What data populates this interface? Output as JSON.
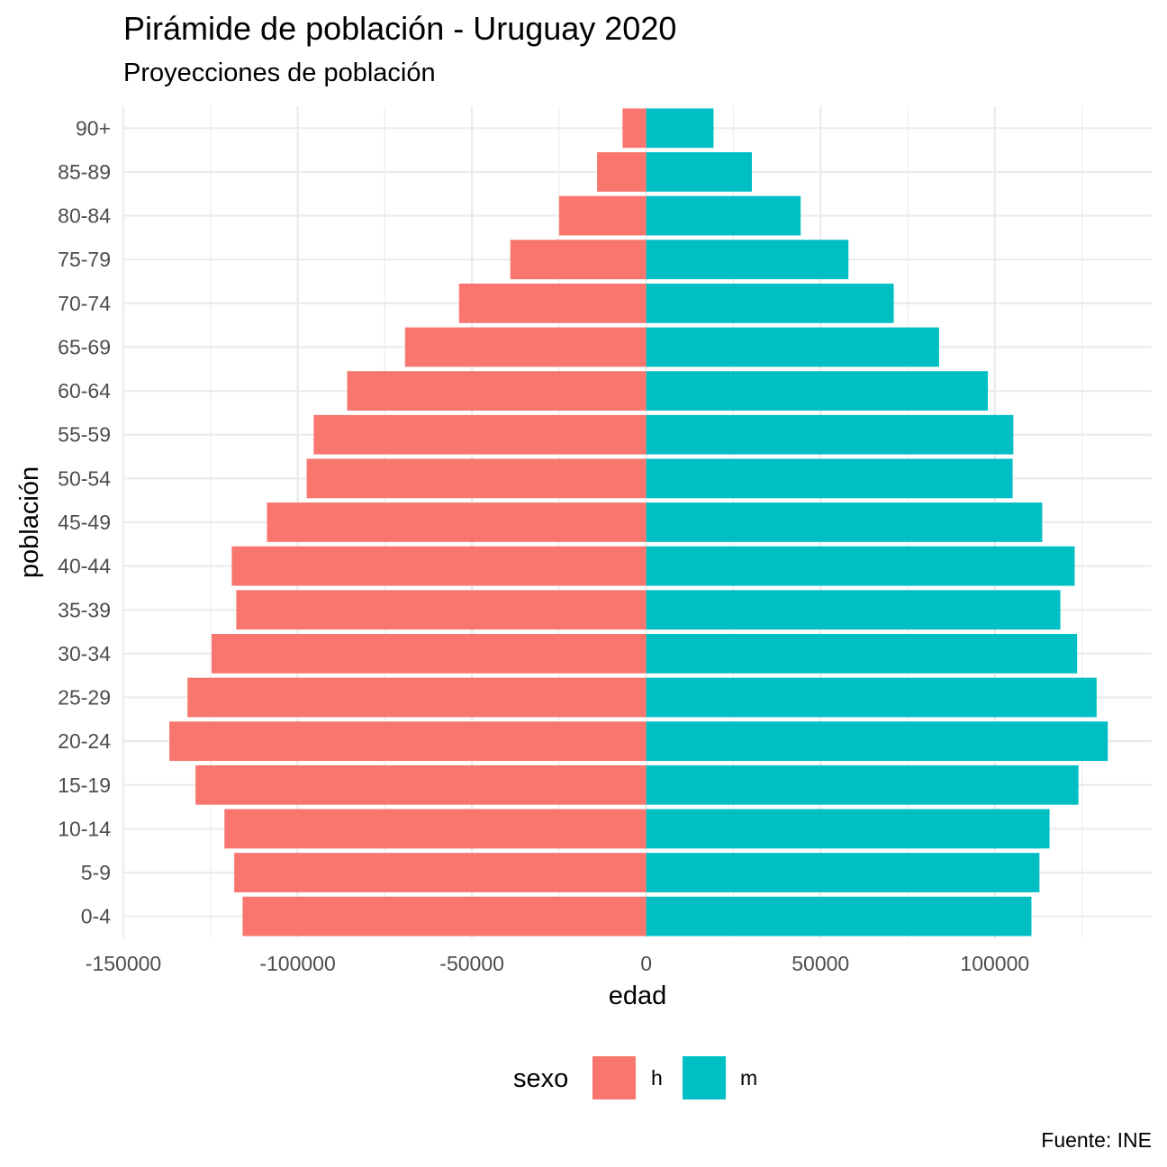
{
  "chart_data": {
    "type": "bar",
    "orientation": "horizontal",
    "title": "Pirámide de población - Uruguay 2020",
    "subtitle": "Proyecciones de población",
    "xlabel": "edad",
    "ylabel": "población",
    "caption": "Fuente: INE",
    "xlim": [
      -150000,
      145000
    ],
    "x_ticks": [
      -150000,
      -100000,
      -50000,
      0,
      50000,
      100000
    ],
    "x_tick_labels": [
      "-150000",
      "-100000",
      "-50000",
      "0",
      "50000",
      "100000"
    ],
    "grid": true,
    "legend": {
      "title": "sexo",
      "position": "bottom",
      "entries": [
        {
          "label": "h",
          "color": "#F8766D"
        },
        {
          "label": "m",
          "color": "#00BFC4"
        }
      ]
    },
    "categories": [
      "0-4",
      "5-9",
      "10-14",
      "15-19",
      "20-24",
      "25-29",
      "30-34",
      "35-39",
      "40-44",
      "45-49",
      "50-54",
      "55-59",
      "60-64",
      "65-69",
      "70-74",
      "75-79",
      "80-84",
      "85-89",
      "90+"
    ],
    "series": [
      {
        "name": "h",
        "color": "#F8766D",
        "values": [
          -115800,
          -118200,
          -121000,
          -129300,
          -136800,
          -131600,
          -124700,
          -117600,
          -118900,
          -108800,
          -97400,
          -95400,
          -85800,
          -69200,
          -53700,
          -39000,
          -25000,
          -14100,
          -6800
        ]
      },
      {
        "name": "m",
        "color": "#00BFC4",
        "values": [
          110500,
          112800,
          115700,
          124000,
          132400,
          129200,
          123600,
          118800,
          122900,
          113600,
          105100,
          105300,
          98000,
          84000,
          71000,
          58000,
          44300,
          30300,
          19300
        ]
      }
    ]
  }
}
